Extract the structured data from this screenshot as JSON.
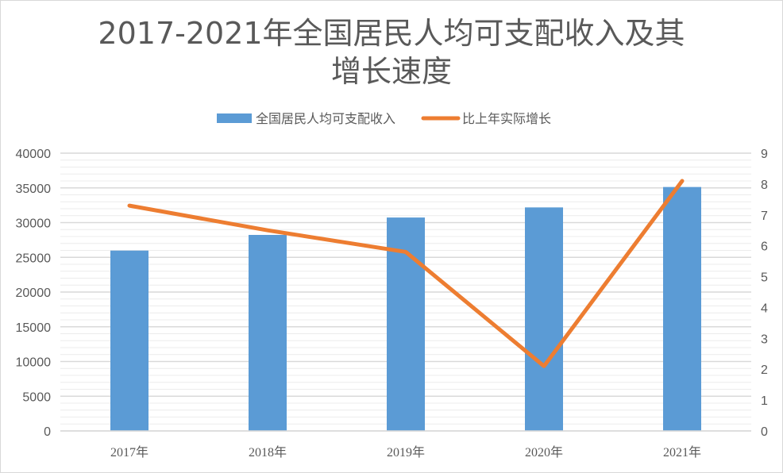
{
  "chart_data": {
    "type": "bar+line",
    "title_line1": "2017-2021年全国居民人均可支配收入及其",
    "title_line2": "增长速度",
    "categories": [
      "2017年",
      "2018年",
      "2019年",
      "2020年",
      "2021年"
    ],
    "series": [
      {
        "name": "全国居民人均可支配收入",
        "type": "bar",
        "axis": "left",
        "color": "#5b9bd5",
        "values": [
          25974,
          28228,
          30733,
          32189,
          35128
        ]
      },
      {
        "name": "比上年实际增长",
        "type": "line",
        "axis": "right",
        "color": "#ed7d31",
        "values": [
          7.3,
          6.5,
          5.8,
          2.1,
          8.1
        ]
      }
    ],
    "left_axis": {
      "ylim": [
        0,
        40000
      ],
      "ticks": [
        "0",
        "5000",
        "10000",
        "15000",
        "20000",
        "25000",
        "30000",
        "35000",
        "40000"
      ]
    },
    "right_axis": {
      "ylim": [
        0,
        9
      ],
      "ticks": [
        "0",
        "1",
        "2",
        "3",
        "4",
        "5",
        "6",
        "7",
        "8",
        "9"
      ]
    },
    "legend_position": "top",
    "grid": true
  }
}
